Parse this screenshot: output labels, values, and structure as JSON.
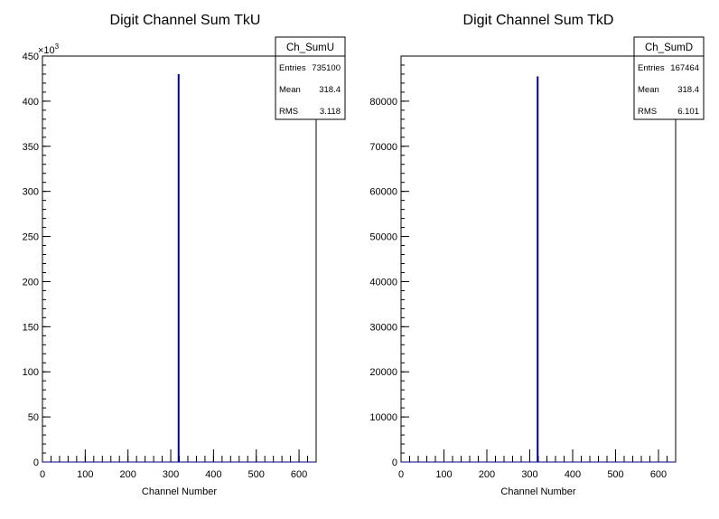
{
  "chart_data": [
    {
      "type": "bar",
      "title": "Digit Channel Sum TkU",
      "xlabel": "Channel Number",
      "ylabel": "",
      "xlim": [
        0,
        640
      ],
      "ylim": [
        0,
        450000
      ],
      "y_multiplier_label": "×10",
      "y_multiplier_exp": "3",
      "x_ticks": [
        0,
        100,
        200,
        300,
        400,
        500,
        600
      ],
      "x_tick_labels": [
        "0",
        "100",
        "200",
        "300",
        "400",
        "500",
        "600"
      ],
      "y_ticks": [
        0,
        50000,
        100000,
        150000,
        200000,
        250000,
        300000,
        350000,
        400000,
        450000
      ],
      "y_tick_labels": [
        "0",
        "50",
        "100",
        "150",
        "200",
        "250",
        "300",
        "350",
        "400",
        "450"
      ],
      "peaks": [
        {
          "x": 318.4,
          "value": 430000
        }
      ],
      "line_color": "#000080",
      "stats": {
        "name": "Ch_SumU",
        "rows": [
          {
            "label": "Entries",
            "value": "735100"
          },
          {
            "label": "Mean",
            "value": "318.4"
          },
          {
            "label": "RMS",
            "value": "3.118"
          }
        ]
      }
    },
    {
      "type": "bar",
      "title": "Digit Channel Sum TkD",
      "xlabel": "Channel Number",
      "ylabel": "",
      "xlim": [
        0,
        640
      ],
      "ylim": [
        0,
        90000
      ],
      "y_multiplier_label": "",
      "y_multiplier_exp": "",
      "x_ticks": [
        0,
        100,
        200,
        300,
        400,
        500,
        600
      ],
      "x_tick_labels": [
        "0",
        "100",
        "200",
        "300",
        "400",
        "500",
        "600"
      ],
      "y_ticks": [
        0,
        10000,
        20000,
        30000,
        40000,
        50000,
        60000,
        70000,
        80000
      ],
      "y_tick_labels": [
        "0",
        "10000",
        "20000",
        "30000",
        "40000",
        "50000",
        "60000",
        "70000",
        "80000"
      ],
      "peaks": [
        {
          "x": 318.4,
          "value": 85500
        }
      ],
      "line_color": "#000080",
      "stats": {
        "name": "Ch_SumD",
        "rows": [
          {
            "label": "Entries",
            "value": "167464"
          },
          {
            "label": "Mean",
            "value": "318.4"
          },
          {
            "label": "RMS",
            "value": "6.101"
          }
        ]
      }
    }
  ]
}
